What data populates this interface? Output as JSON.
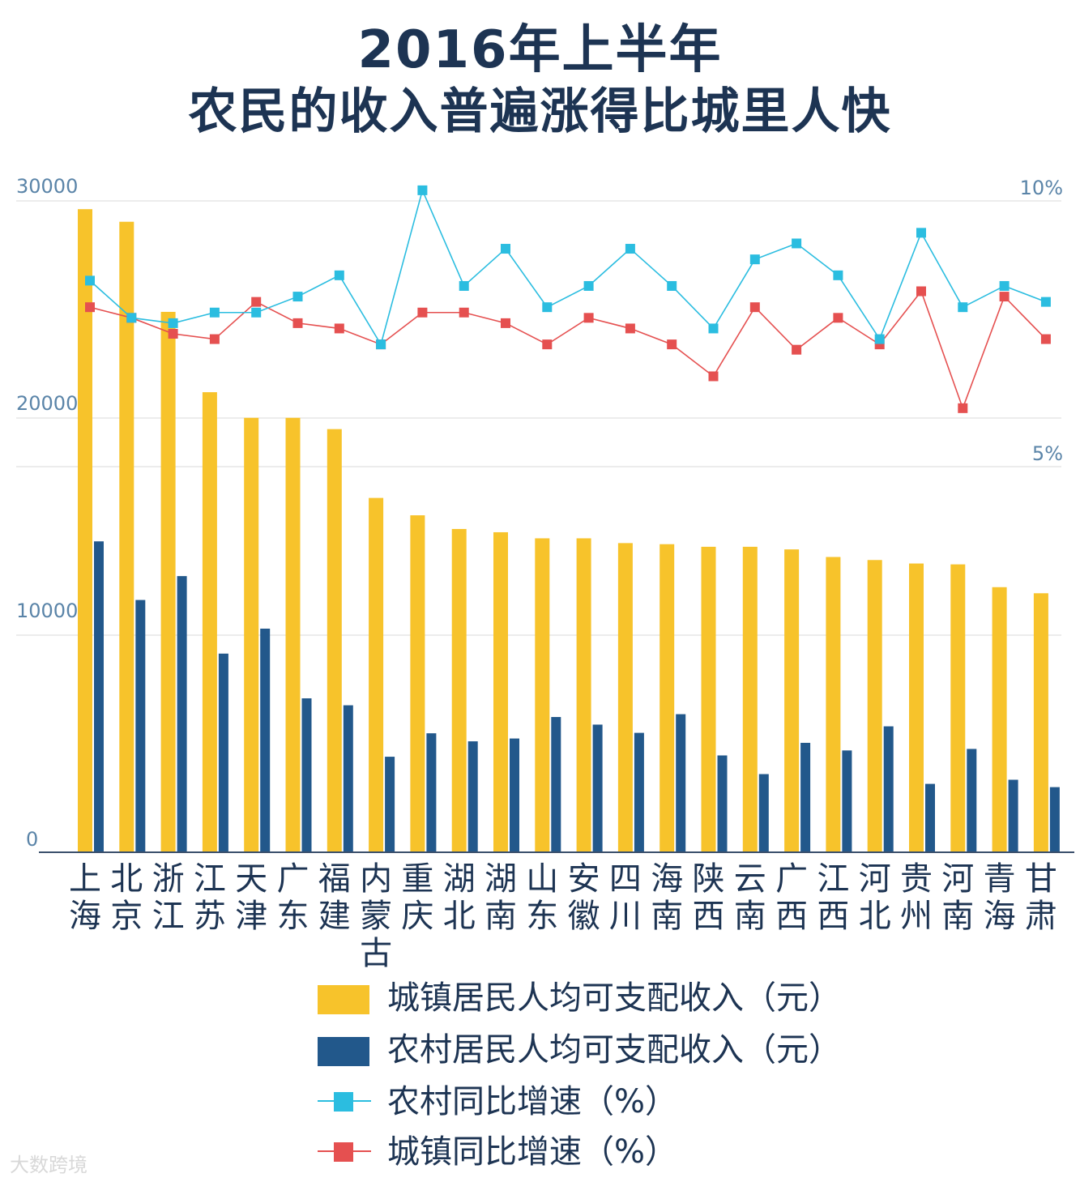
{
  "title": {
    "line1": "2016年上半年",
    "line2": "农民的收入普遍涨得比城里人快"
  },
  "chart_data": {
    "type": "bar",
    "categories": [
      "上海",
      "北京",
      "浙江",
      "江苏",
      "天津",
      "广东",
      "福建",
      "内蒙古",
      "重庆",
      "湖北",
      "湖南",
      "山东",
      "安徽",
      "四川",
      "海南",
      "陕西",
      "云南",
      "广西",
      "江西",
      "河北",
      "贵州",
      "河南",
      "青海",
      "甘肃"
    ],
    "category_labels": [
      "上\n海",
      "北\n京",
      "浙\n江",
      "江\n苏",
      "天\n津",
      "广\n东",
      "福\n建",
      "内\n蒙\n古",
      "重\n庆",
      "湖\n北",
      "湖\n南",
      "山\n东",
      "安\n徽",
      "四\n川",
      "海\n南",
      "陕\n西",
      "云\n南",
      "广\n西",
      "江\n西",
      "河\n北",
      "贵\n州",
      "河\n南",
      "青\n海",
      "甘\n肃"
    ],
    "left_axis": {
      "ticks": [
        "30000",
        "20000",
        "10000",
        "0"
      ],
      "ylim": [
        0,
        30000
      ]
    },
    "right_axis": {
      "ticks": [
        "10%",
        "5%"
      ],
      "ylim": [
        0,
        10
      ]
    },
    "series": [
      {
        "name": "城镇居民人均可支配收入（元）",
        "kind": "bar",
        "axis": "left",
        "color": "#f7c32b",
        "values": [
          29620,
          29040,
          24890,
          21190,
          20010,
          20010,
          19490,
          16320,
          15520,
          14890,
          14740,
          14460,
          14460,
          14240,
          14190,
          14070,
          14070,
          13950,
          13600,
          13460,
          13300,
          13260,
          12210,
          11930
        ]
      },
      {
        "name": "农村居民人均可支配收入（元）",
        "kind": "bar",
        "axis": "left",
        "color": "#22588b",
        "values": [
          14320,
          11620,
          12720,
          9150,
          10300,
          7090,
          6770,
          4400,
          5480,
          5110,
          5240,
          6230,
          5880,
          5500,
          6360,
          4460,
          3600,
          5040,
          4690,
          5800,
          3150,
          4760,
          3340,
          3000
        ]
      },
      {
        "name": "农村同比增速（%）",
        "kind": "line",
        "axis": "right",
        "color": "#2bbde0",
        "values": [
          8.5,
          7.8,
          7.7,
          7.9,
          7.9,
          8.2,
          8.6,
          7.3,
          10.2,
          8.4,
          9.1,
          8.0,
          8.4,
          9.1,
          8.4,
          7.6,
          8.9,
          9.2,
          8.6,
          7.4,
          9.4,
          8.0,
          8.4,
          8.1
        ]
      },
      {
        "name": "城镇同比增速（%）",
        "kind": "line",
        "axis": "right",
        "color": "#e55050",
        "values": [
          8.0,
          7.8,
          7.5,
          7.4,
          8.1,
          7.7,
          7.6,
          7.3,
          7.9,
          7.9,
          7.7,
          7.3,
          7.8,
          7.6,
          7.3,
          6.7,
          8.0,
          7.2,
          7.8,
          7.3,
          8.3,
          6.1,
          8.2,
          7.4
        ]
      }
    ],
    "grid": true,
    "legend_position": "bottom"
  },
  "watermark": "大数跨境"
}
